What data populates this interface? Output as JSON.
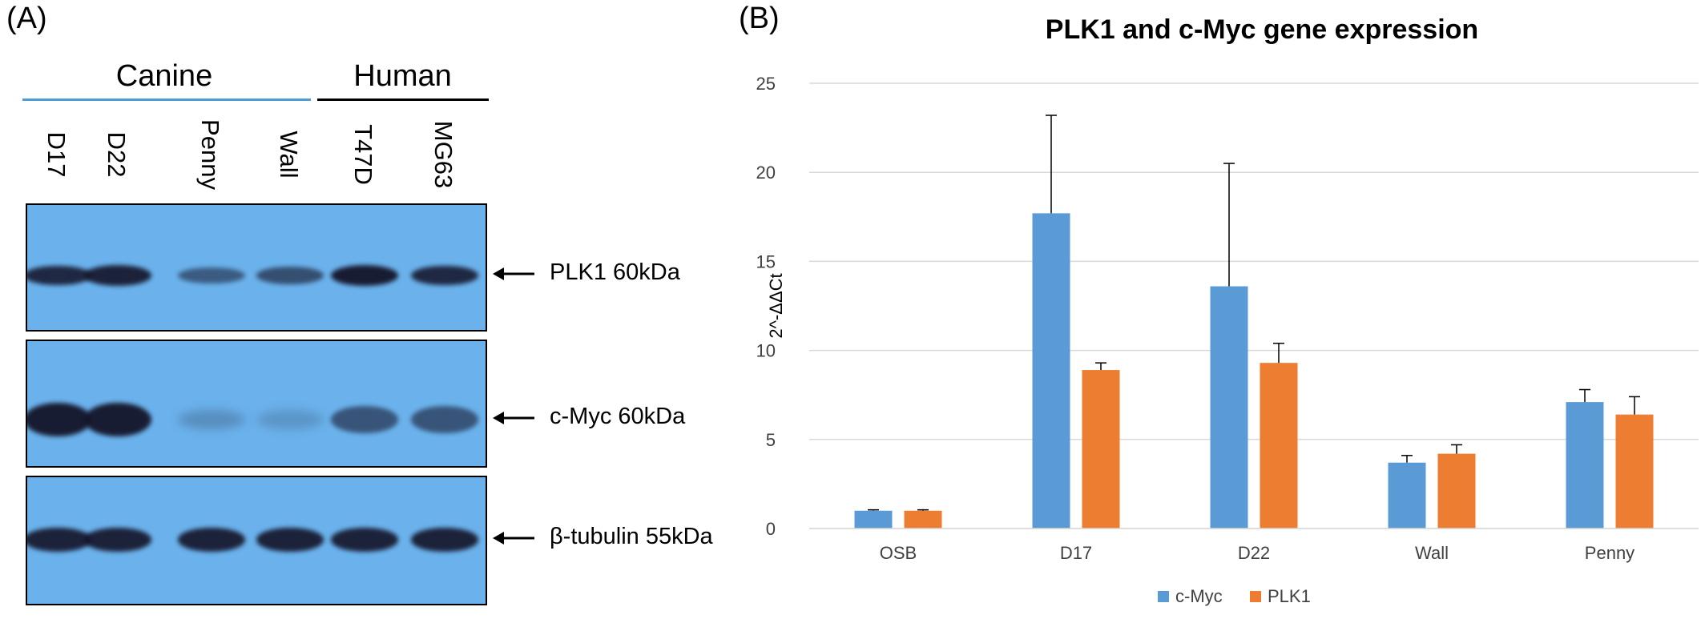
{
  "panel_a": {
    "letter": "(A)",
    "groups": [
      {
        "label": "Canine",
        "color": "#4a9fd6"
      },
      {
        "label": "Human",
        "color": "#000000"
      }
    ],
    "lanes": [
      "D17",
      "D22",
      "Penny",
      "Wall",
      "T47D",
      "MG63"
    ],
    "blots": [
      {
        "label": "PLK1  60kDa",
        "band_intensity": [
          0.9,
          0.95,
          0.5,
          0.6,
          1.0,
          0.9
        ]
      },
      {
        "label": "c-Myc  60kDa",
        "band_intensity": [
          1.0,
          1.0,
          0.1,
          0.05,
          0.55,
          0.55
        ]
      },
      {
        "label": "β-tubulin 55kDa",
        "band_intensity": [
          0.95,
          0.95,
          0.95,
          0.95,
          0.95,
          0.95
        ]
      }
    ]
  },
  "panel_b": {
    "letter": "(B)"
  },
  "chart_data": {
    "type": "bar",
    "title": "PLK1 and c-Myc gene expression",
    "xlabel": "",
    "ylabel": "2^-ΔΔCt",
    "categories": [
      "OSB",
      "D17",
      "D22",
      "Wall",
      "Penny"
    ],
    "ylim": [
      0,
      25
    ],
    "yticks": [
      0,
      5,
      10,
      15,
      20,
      25
    ],
    "grid": true,
    "legend_position": "bottom",
    "series": [
      {
        "name": "c-Myc",
        "color": "#5b9bd5",
        "values": [
          1.0,
          17.7,
          13.6,
          3.7,
          7.1
        ],
        "errors": [
          0.05,
          5.5,
          6.9,
          0.4,
          0.7
        ]
      },
      {
        "name": "PLK1",
        "color": "#ed7d31",
        "values": [
          1.0,
          8.9,
          9.3,
          4.2,
          6.4
        ],
        "errors": [
          0.05,
          0.4,
          1.1,
          0.5,
          1.0
        ]
      }
    ]
  }
}
